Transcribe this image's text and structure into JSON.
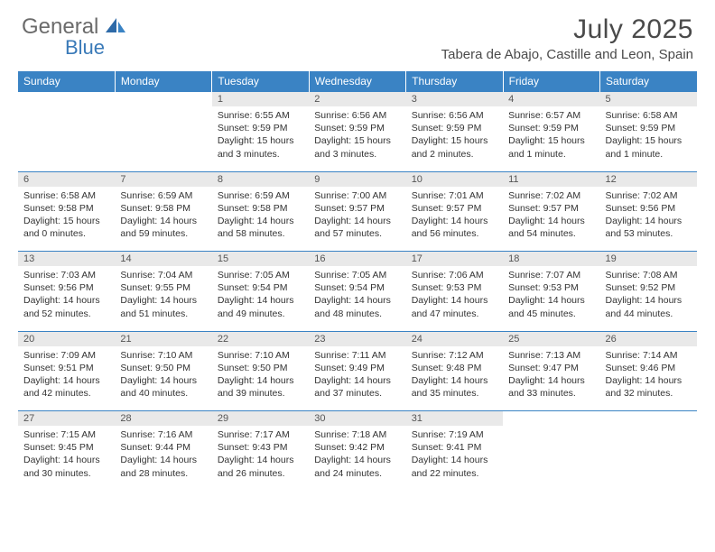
{
  "brand": {
    "part1": "General",
    "part2": "Blue"
  },
  "title": "July 2025",
  "location": "Tabera de Abajo, Castille and Leon, Spain",
  "colors": {
    "header_bg": "#3a83c4",
    "header_text": "#ffffff",
    "daynum_bg": "#e9e9e9",
    "border": "#3a83c4",
    "logo_gray": "#6b6b6b",
    "logo_blue": "#3a7ab8",
    "body_text": "#333333"
  },
  "dayHeaders": [
    "Sunday",
    "Monday",
    "Tuesday",
    "Wednesday",
    "Thursday",
    "Friday",
    "Saturday"
  ],
  "weeks": [
    [
      null,
      null,
      {
        "n": "1",
        "sr": "Sunrise: 6:55 AM",
        "ss": "Sunset: 9:59 PM",
        "dl1": "Daylight: 15 hours",
        "dl2": "and 3 minutes."
      },
      {
        "n": "2",
        "sr": "Sunrise: 6:56 AM",
        "ss": "Sunset: 9:59 PM",
        "dl1": "Daylight: 15 hours",
        "dl2": "and 3 minutes."
      },
      {
        "n": "3",
        "sr": "Sunrise: 6:56 AM",
        "ss": "Sunset: 9:59 PM",
        "dl1": "Daylight: 15 hours",
        "dl2": "and 2 minutes."
      },
      {
        "n": "4",
        "sr": "Sunrise: 6:57 AM",
        "ss": "Sunset: 9:59 PM",
        "dl1": "Daylight: 15 hours",
        "dl2": "and 1 minute."
      },
      {
        "n": "5",
        "sr": "Sunrise: 6:58 AM",
        "ss": "Sunset: 9:59 PM",
        "dl1": "Daylight: 15 hours",
        "dl2": "and 1 minute."
      }
    ],
    [
      {
        "n": "6",
        "sr": "Sunrise: 6:58 AM",
        "ss": "Sunset: 9:58 PM",
        "dl1": "Daylight: 15 hours",
        "dl2": "and 0 minutes."
      },
      {
        "n": "7",
        "sr": "Sunrise: 6:59 AM",
        "ss": "Sunset: 9:58 PM",
        "dl1": "Daylight: 14 hours",
        "dl2": "and 59 minutes."
      },
      {
        "n": "8",
        "sr": "Sunrise: 6:59 AM",
        "ss": "Sunset: 9:58 PM",
        "dl1": "Daylight: 14 hours",
        "dl2": "and 58 minutes."
      },
      {
        "n": "9",
        "sr": "Sunrise: 7:00 AM",
        "ss": "Sunset: 9:57 PM",
        "dl1": "Daylight: 14 hours",
        "dl2": "and 57 minutes."
      },
      {
        "n": "10",
        "sr": "Sunrise: 7:01 AM",
        "ss": "Sunset: 9:57 PM",
        "dl1": "Daylight: 14 hours",
        "dl2": "and 56 minutes."
      },
      {
        "n": "11",
        "sr": "Sunrise: 7:02 AM",
        "ss": "Sunset: 9:57 PM",
        "dl1": "Daylight: 14 hours",
        "dl2": "and 54 minutes."
      },
      {
        "n": "12",
        "sr": "Sunrise: 7:02 AM",
        "ss": "Sunset: 9:56 PM",
        "dl1": "Daylight: 14 hours",
        "dl2": "and 53 minutes."
      }
    ],
    [
      {
        "n": "13",
        "sr": "Sunrise: 7:03 AM",
        "ss": "Sunset: 9:56 PM",
        "dl1": "Daylight: 14 hours",
        "dl2": "and 52 minutes."
      },
      {
        "n": "14",
        "sr": "Sunrise: 7:04 AM",
        "ss": "Sunset: 9:55 PM",
        "dl1": "Daylight: 14 hours",
        "dl2": "and 51 minutes."
      },
      {
        "n": "15",
        "sr": "Sunrise: 7:05 AM",
        "ss": "Sunset: 9:54 PM",
        "dl1": "Daylight: 14 hours",
        "dl2": "and 49 minutes."
      },
      {
        "n": "16",
        "sr": "Sunrise: 7:05 AM",
        "ss": "Sunset: 9:54 PM",
        "dl1": "Daylight: 14 hours",
        "dl2": "and 48 minutes."
      },
      {
        "n": "17",
        "sr": "Sunrise: 7:06 AM",
        "ss": "Sunset: 9:53 PM",
        "dl1": "Daylight: 14 hours",
        "dl2": "and 47 minutes."
      },
      {
        "n": "18",
        "sr": "Sunrise: 7:07 AM",
        "ss": "Sunset: 9:53 PM",
        "dl1": "Daylight: 14 hours",
        "dl2": "and 45 minutes."
      },
      {
        "n": "19",
        "sr": "Sunrise: 7:08 AM",
        "ss": "Sunset: 9:52 PM",
        "dl1": "Daylight: 14 hours",
        "dl2": "and 44 minutes."
      }
    ],
    [
      {
        "n": "20",
        "sr": "Sunrise: 7:09 AM",
        "ss": "Sunset: 9:51 PM",
        "dl1": "Daylight: 14 hours",
        "dl2": "and 42 minutes."
      },
      {
        "n": "21",
        "sr": "Sunrise: 7:10 AM",
        "ss": "Sunset: 9:50 PM",
        "dl1": "Daylight: 14 hours",
        "dl2": "and 40 minutes."
      },
      {
        "n": "22",
        "sr": "Sunrise: 7:10 AM",
        "ss": "Sunset: 9:50 PM",
        "dl1": "Daylight: 14 hours",
        "dl2": "and 39 minutes."
      },
      {
        "n": "23",
        "sr": "Sunrise: 7:11 AM",
        "ss": "Sunset: 9:49 PM",
        "dl1": "Daylight: 14 hours",
        "dl2": "and 37 minutes."
      },
      {
        "n": "24",
        "sr": "Sunrise: 7:12 AM",
        "ss": "Sunset: 9:48 PM",
        "dl1": "Daylight: 14 hours",
        "dl2": "and 35 minutes."
      },
      {
        "n": "25",
        "sr": "Sunrise: 7:13 AM",
        "ss": "Sunset: 9:47 PM",
        "dl1": "Daylight: 14 hours",
        "dl2": "and 33 minutes."
      },
      {
        "n": "26",
        "sr": "Sunrise: 7:14 AM",
        "ss": "Sunset: 9:46 PM",
        "dl1": "Daylight: 14 hours",
        "dl2": "and 32 minutes."
      }
    ],
    [
      {
        "n": "27",
        "sr": "Sunrise: 7:15 AM",
        "ss": "Sunset: 9:45 PM",
        "dl1": "Daylight: 14 hours",
        "dl2": "and 30 minutes."
      },
      {
        "n": "28",
        "sr": "Sunrise: 7:16 AM",
        "ss": "Sunset: 9:44 PM",
        "dl1": "Daylight: 14 hours",
        "dl2": "and 28 minutes."
      },
      {
        "n": "29",
        "sr": "Sunrise: 7:17 AM",
        "ss": "Sunset: 9:43 PM",
        "dl1": "Daylight: 14 hours",
        "dl2": "and 26 minutes."
      },
      {
        "n": "30",
        "sr": "Sunrise: 7:18 AM",
        "ss": "Sunset: 9:42 PM",
        "dl1": "Daylight: 14 hours",
        "dl2": "and 24 minutes."
      },
      {
        "n": "31",
        "sr": "Sunrise: 7:19 AM",
        "ss": "Sunset: 9:41 PM",
        "dl1": "Daylight: 14 hours",
        "dl2": "and 22 minutes."
      },
      null,
      null
    ]
  ]
}
